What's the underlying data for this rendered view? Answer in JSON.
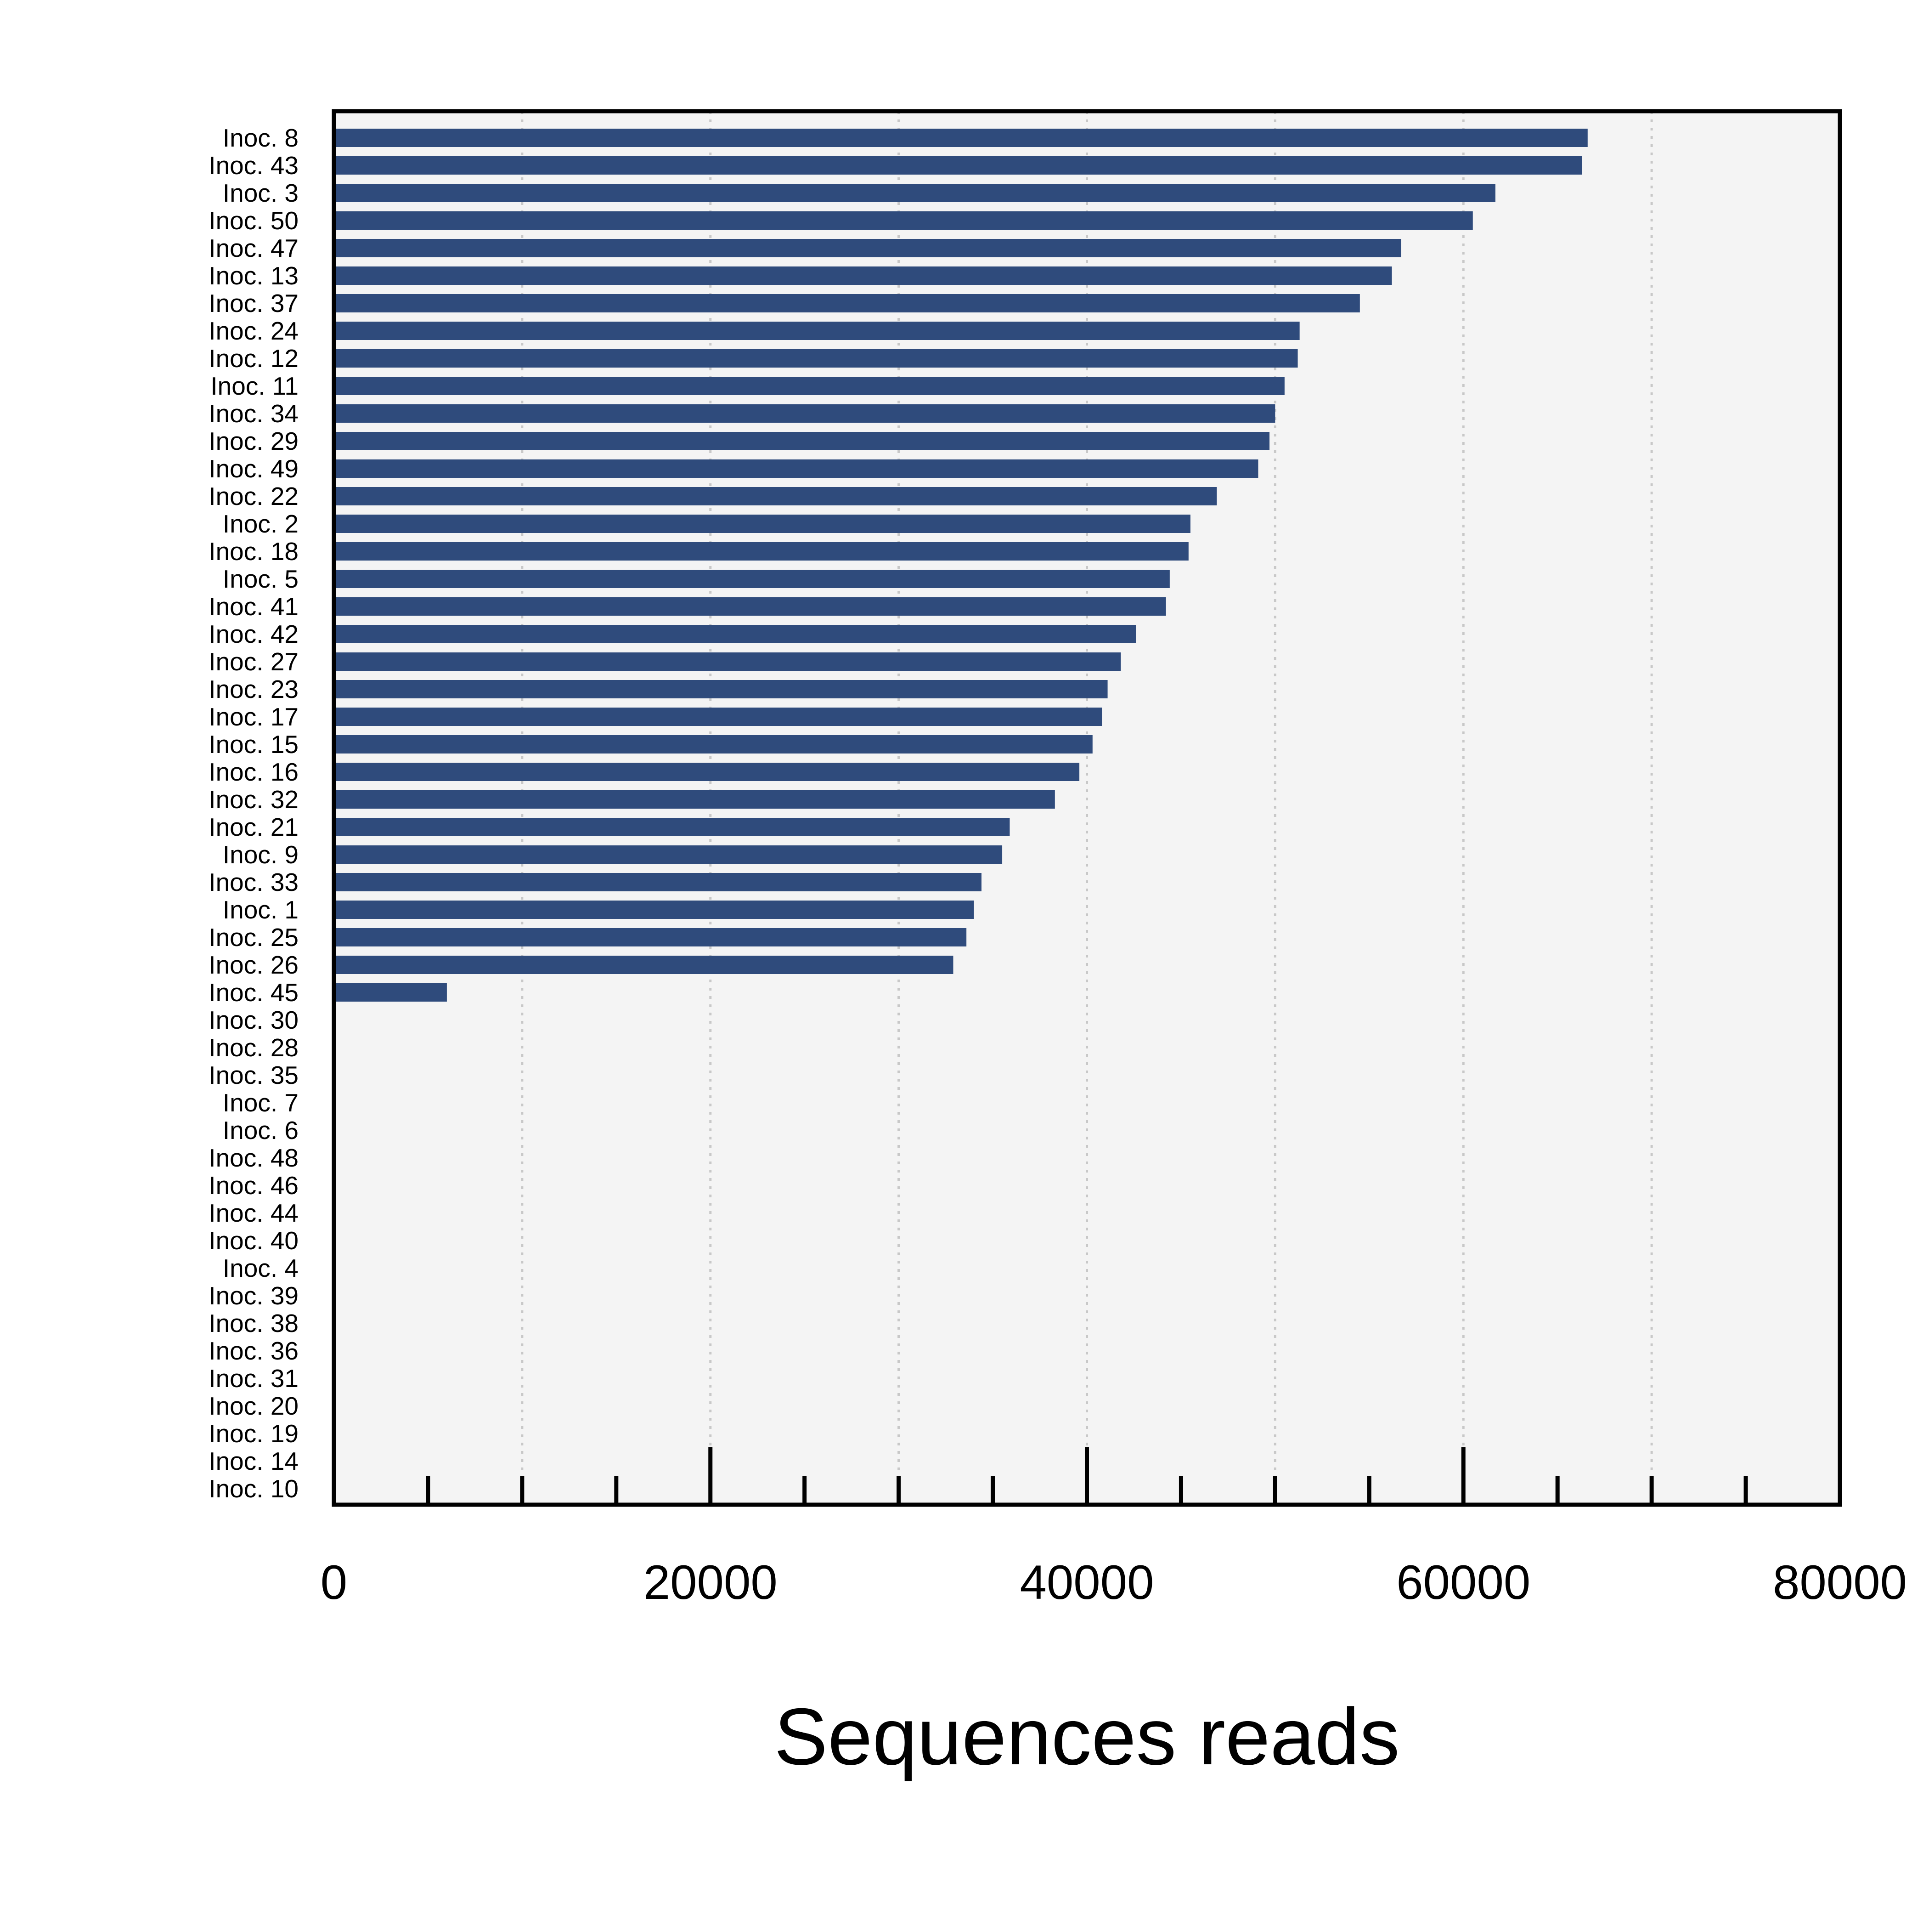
{
  "chart_data": {
    "type": "bar",
    "orientation": "horizontal",
    "xlabel": "Sequences reads",
    "ylabel": "",
    "title": "",
    "xlim": [
      0,
      80000
    ],
    "xticks": [
      0,
      20000,
      40000,
      60000,
      80000
    ],
    "xtick_labels": [
      "0",
      "20000",
      "40000",
      "60000",
      "80000"
    ],
    "minor_tick_step": 5000,
    "grid": "vertical dotted every 10000",
    "colors": {
      "bar": "#2f4b7c",
      "panel": "#f4f4f4",
      "grid": "#c8c8c8",
      "axis": "#000000"
    },
    "categories": [
      "Inoc. 8",
      "Inoc. 43",
      "Inoc. 3",
      "Inoc. 50",
      "Inoc. 47",
      "Inoc. 13",
      "Inoc. 37",
      "Inoc. 24",
      "Inoc. 12",
      "Inoc. 11",
      "Inoc. 34",
      "Inoc. 29",
      "Inoc. 49",
      "Inoc. 22",
      "Inoc. 2",
      "Inoc. 18",
      "Inoc. 5",
      "Inoc. 41",
      "Inoc. 42",
      "Inoc. 27",
      "Inoc. 23",
      "Inoc. 17",
      "Inoc. 15",
      "Inoc. 16",
      "Inoc. 32",
      "Inoc. 21",
      "Inoc. 9",
      "Inoc. 33",
      "Inoc. 1",
      "Inoc. 25",
      "Inoc. 26",
      "Inoc. 45",
      "Inoc. 30",
      "Inoc. 28",
      "Inoc. 35",
      "Inoc. 7",
      "Inoc. 6",
      "Inoc. 48",
      "Inoc. 46",
      "Inoc. 44",
      "Inoc. 40",
      "Inoc. 4",
      "Inoc. 39",
      "Inoc. 38",
      "Inoc. 36",
      "Inoc. 31",
      "Inoc. 20",
      "Inoc. 19",
      "Inoc. 14",
      "Inoc. 10"
    ],
    "values": [
      66600,
      66300,
      61700,
      60500,
      56700,
      56200,
      54500,
      51300,
      51200,
      50500,
      50000,
      49700,
      49100,
      46900,
      45500,
      45400,
      44400,
      44200,
      42600,
      41800,
      41100,
      40800,
      40300,
      39600,
      38300,
      35900,
      35500,
      34400,
      34000,
      33600,
      32900,
      6000,
      0,
      0,
      0,
      0,
      0,
      0,
      0,
      0,
      0,
      0,
      0,
      0,
      0,
      0,
      0,
      0,
      0,
      0
    ]
  }
}
